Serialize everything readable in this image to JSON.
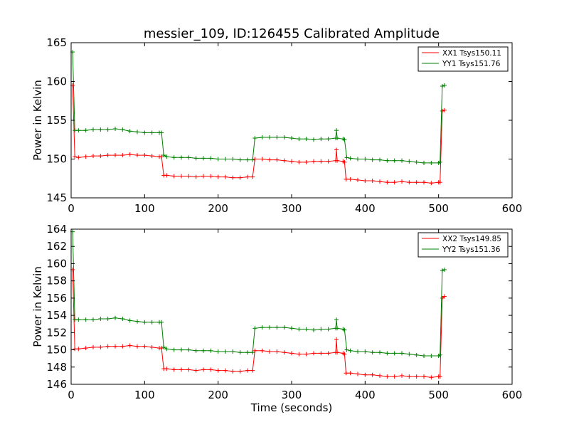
{
  "title": "messier_109, ID:126455 Calibrated Amplitude",
  "colors": {
    "xx": "#ff0000",
    "yy": "#008000"
  },
  "chart_data": [
    {
      "type": "line",
      "title": "messier_109, ID:126455 Calibrated Amplitude",
      "xlabel": "",
      "ylabel": "Power in Kelvin",
      "xlim": [
        0,
        600
      ],
      "ylim": [
        145,
        165
      ],
      "xticks": [
        0,
        100,
        200,
        300,
        400,
        500,
        600
      ],
      "yticks": [
        145,
        150,
        155,
        160,
        165
      ],
      "grid": false,
      "legend_position": "top-right",
      "marker": "plus",
      "series": [
        {
          "name": "XX1 Tsys150.11",
          "color": "#ff0000",
          "points": [
            [
              2,
              159.5
            ],
            [
              5,
              150.3
            ],
            [
              10,
              150.2
            ],
            [
              20,
              150.3
            ],
            [
              30,
              150.4
            ],
            [
              40,
              150.4
            ],
            [
              50,
              150.5
            ],
            [
              60,
              150.5
            ],
            [
              70,
              150.5
            ],
            [
              80,
              150.6
            ],
            [
              90,
              150.5
            ],
            [
              100,
              150.5
            ],
            [
              110,
              150.4
            ],
            [
              120,
              150.3
            ],
            [
              123,
              150.3
            ],
            [
              126,
              147.9
            ],
            [
              130,
              147.9
            ],
            [
              140,
              147.8
            ],
            [
              150,
              147.8
            ],
            [
              160,
              147.8
            ],
            [
              170,
              147.7
            ],
            [
              180,
              147.8
            ],
            [
              190,
              147.8
            ],
            [
              200,
              147.7
            ],
            [
              210,
              147.7
            ],
            [
              220,
              147.6
            ],
            [
              230,
              147.6
            ],
            [
              240,
              147.7
            ],
            [
              247,
              147.7
            ],
            [
              250,
              150.0
            ],
            [
              260,
              150.0
            ],
            [
              270,
              149.9
            ],
            [
              280,
              149.9
            ],
            [
              290,
              149.8
            ],
            [
              300,
              149.7
            ],
            [
              310,
              149.6
            ],
            [
              320,
              149.6
            ],
            [
              330,
              149.7
            ],
            [
              340,
              149.7
            ],
            [
              350,
              149.7
            ],
            [
              360,
              149.8
            ],
            [
              361,
              151.2
            ],
            [
              362,
              149.8
            ],
            [
              370,
              149.7
            ],
            [
              372,
              149.6
            ],
            [
              374,
              147.4
            ],
            [
              380,
              147.4
            ],
            [
              390,
              147.3
            ],
            [
              400,
              147.2
            ],
            [
              410,
              147.2
            ],
            [
              420,
              147.1
            ],
            [
              430,
              147.0
            ],
            [
              440,
              147.0
            ],
            [
              450,
              147.1
            ],
            [
              460,
              147.0
            ],
            [
              470,
              147.0
            ],
            [
              480,
              147.0
            ],
            [
              490,
              146.9
            ],
            [
              500,
              147.0
            ],
            [
              502,
              147.0
            ],
            [
              505,
              156.2
            ],
            [
              508,
              156.3
            ]
          ]
        },
        {
          "name": "YY1 Tsys151.76",
          "color": "#008000",
          "points": [
            [
              2,
              163.8
            ],
            [
              5,
              153.7
            ],
            [
              10,
              153.7
            ],
            [
              20,
              153.7
            ],
            [
              30,
              153.8
            ],
            [
              40,
              153.8
            ],
            [
              50,
              153.8
            ],
            [
              60,
              153.9
            ],
            [
              70,
              153.8
            ],
            [
              80,
              153.6
            ],
            [
              90,
              153.5
            ],
            [
              100,
              153.4
            ],
            [
              110,
              153.4
            ],
            [
              120,
              153.4
            ],
            [
              123,
              153.4
            ],
            [
              126,
              150.5
            ],
            [
              130,
              150.3
            ],
            [
              140,
              150.2
            ],
            [
              150,
              150.2
            ],
            [
              160,
              150.2
            ],
            [
              170,
              150.1
            ],
            [
              180,
              150.1
            ],
            [
              190,
              150.1
            ],
            [
              200,
              150.0
            ],
            [
              210,
              150.0
            ],
            [
              220,
              150.0
            ],
            [
              230,
              149.9
            ],
            [
              240,
              149.9
            ],
            [
              247,
              149.9
            ],
            [
              250,
              152.7
            ],
            [
              260,
              152.8
            ],
            [
              270,
              152.8
            ],
            [
              280,
              152.8
            ],
            [
              290,
              152.8
            ],
            [
              300,
              152.7
            ],
            [
              310,
              152.6
            ],
            [
              320,
              152.6
            ],
            [
              330,
              152.5
            ],
            [
              340,
              152.6
            ],
            [
              350,
              152.6
            ],
            [
              360,
              152.7
            ],
            [
              361,
              153.7
            ],
            [
              362,
              152.7
            ],
            [
              370,
              152.6
            ],
            [
              372,
              152.5
            ],
            [
              375,
              150.2
            ],
            [
              380,
              150.1
            ],
            [
              390,
              150.0
            ],
            [
              400,
              150.0
            ],
            [
              410,
              149.9
            ],
            [
              420,
              149.9
            ],
            [
              430,
              149.8
            ],
            [
              440,
              149.8
            ],
            [
              450,
              149.8
            ],
            [
              460,
              149.7
            ],
            [
              470,
              149.6
            ],
            [
              480,
              149.5
            ],
            [
              490,
              149.5
            ],
            [
              500,
              149.5
            ],
            [
              502,
              149.6
            ],
            [
              505,
              159.4
            ],
            [
              508,
              159.5
            ]
          ]
        }
      ]
    },
    {
      "type": "line",
      "title": "",
      "xlabel": "Time (seconds)",
      "ylabel": "Power in Kelvin",
      "xlim": [
        0,
        600
      ],
      "ylim": [
        146,
        164
      ],
      "xticks": [
        0,
        100,
        200,
        300,
        400,
        500,
        600
      ],
      "yticks": [
        146,
        148,
        150,
        152,
        154,
        156,
        158,
        160,
        162,
        164
      ],
      "grid": false,
      "legend_position": "top-right",
      "marker": "plus",
      "series": [
        {
          "name": "XX2 Tsys149.85",
          "color": "#ff0000",
          "points": [
            [
              2,
              159.3
            ],
            [
              5,
              150.1
            ],
            [
              10,
              150.1
            ],
            [
              20,
              150.2
            ],
            [
              30,
              150.3
            ],
            [
              40,
              150.3
            ],
            [
              50,
              150.4
            ],
            [
              60,
              150.4
            ],
            [
              70,
              150.4
            ],
            [
              80,
              150.5
            ],
            [
              90,
              150.4
            ],
            [
              100,
              150.4
            ],
            [
              110,
              150.3
            ],
            [
              120,
              150.2
            ],
            [
              123,
              150.2
            ],
            [
              126,
              147.8
            ],
            [
              130,
              147.8
            ],
            [
              140,
              147.7
            ],
            [
              150,
              147.7
            ],
            [
              160,
              147.7
            ],
            [
              170,
              147.6
            ],
            [
              180,
              147.7
            ],
            [
              190,
              147.7
            ],
            [
              200,
              147.6
            ],
            [
              210,
              147.6
            ],
            [
              220,
              147.5
            ],
            [
              230,
              147.5
            ],
            [
              240,
              147.6
            ],
            [
              247,
              147.6
            ],
            [
              250,
              149.9
            ],
            [
              260,
              149.9
            ],
            [
              270,
              149.8
            ],
            [
              280,
              149.8
            ],
            [
              290,
              149.7
            ],
            [
              300,
              149.6
            ],
            [
              310,
              149.5
            ],
            [
              320,
              149.5
            ],
            [
              330,
              149.6
            ],
            [
              340,
              149.6
            ],
            [
              350,
              149.6
            ],
            [
              360,
              149.7
            ],
            [
              361,
              151.2
            ],
            [
              362,
              149.7
            ],
            [
              370,
              149.6
            ],
            [
              372,
              149.5
            ],
            [
              374,
              147.3
            ],
            [
              380,
              147.3
            ],
            [
              390,
              147.2
            ],
            [
              400,
              147.1
            ],
            [
              410,
              147.1
            ],
            [
              420,
              147.0
            ],
            [
              430,
              146.9
            ],
            [
              440,
              146.9
            ],
            [
              450,
              147.0
            ],
            [
              460,
              146.9
            ],
            [
              470,
              146.9
            ],
            [
              480,
              146.9
            ],
            [
              490,
              146.8
            ],
            [
              500,
              146.9
            ],
            [
              502,
              146.9
            ],
            [
              505,
              156.0
            ],
            [
              508,
              156.2
            ]
          ]
        },
        {
          "name": "YY2 Tsys151.36",
          "color": "#008000",
          "points": [
            [
              2,
              163.7
            ],
            [
              5,
              153.5
            ],
            [
              10,
              153.5
            ],
            [
              20,
              153.5
            ],
            [
              30,
              153.5
            ],
            [
              40,
              153.6
            ],
            [
              50,
              153.6
            ],
            [
              60,
              153.7
            ],
            [
              70,
              153.6
            ],
            [
              80,
              153.4
            ],
            [
              90,
              153.3
            ],
            [
              100,
              153.2
            ],
            [
              110,
              153.2
            ],
            [
              120,
              153.2
            ],
            [
              123,
              153.2
            ],
            [
              126,
              150.3
            ],
            [
              130,
              150.1
            ],
            [
              140,
              150.0
            ],
            [
              150,
              150.0
            ],
            [
              160,
              150.0
            ],
            [
              170,
              149.9
            ],
            [
              180,
              149.9
            ],
            [
              190,
              149.9
            ],
            [
              200,
              149.8
            ],
            [
              210,
              149.8
            ],
            [
              220,
              149.8
            ],
            [
              230,
              149.7
            ],
            [
              240,
              149.7
            ],
            [
              247,
              149.7
            ],
            [
              250,
              152.5
            ],
            [
              260,
              152.6
            ],
            [
              270,
              152.6
            ],
            [
              280,
              152.6
            ],
            [
              290,
              152.6
            ],
            [
              300,
              152.5
            ],
            [
              310,
              152.4
            ],
            [
              320,
              152.4
            ],
            [
              330,
              152.3
            ],
            [
              340,
              152.4
            ],
            [
              350,
              152.4
            ],
            [
              360,
              152.5
            ],
            [
              361,
              153.5
            ],
            [
              362,
              152.5
            ],
            [
              370,
              152.4
            ],
            [
              372,
              152.3
            ],
            [
              375,
              150.0
            ],
            [
              380,
              149.9
            ],
            [
              390,
              149.8
            ],
            [
              400,
              149.8
            ],
            [
              410,
              149.7
            ],
            [
              420,
              149.7
            ],
            [
              430,
              149.6
            ],
            [
              440,
              149.6
            ],
            [
              450,
              149.6
            ],
            [
              460,
              149.5
            ],
            [
              470,
              149.4
            ],
            [
              480,
              149.3
            ],
            [
              490,
              149.3
            ],
            [
              500,
              149.3
            ],
            [
              502,
              149.4
            ],
            [
              505,
              159.2
            ],
            [
              508,
              159.3
            ]
          ]
        }
      ]
    }
  ]
}
